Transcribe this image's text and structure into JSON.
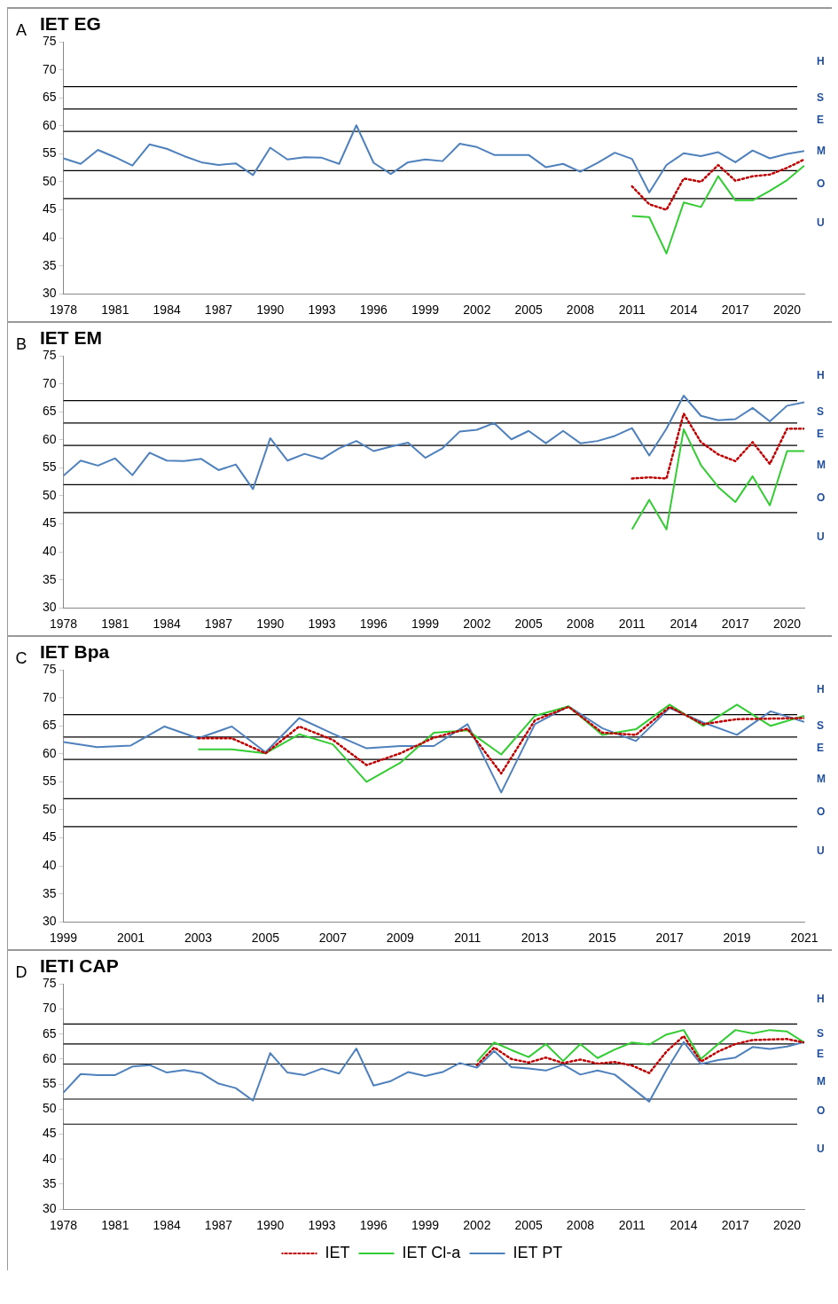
{
  "chart_data": [
    {
      "type": "line",
      "title": "IET EG",
      "annotations": [
        "A",
        "H",
        "S",
        "E",
        "M",
        "O",
        "U"
      ],
      "marker": "none",
      "grid": false,
      "legend": false,
      "xlim": [
        1978,
        2021
      ],
      "xticks": [
        1978,
        1981,
        1984,
        1987,
        1990,
        1993,
        1996,
        1999,
        2002,
        2005,
        2008,
        2011,
        2014,
        2017,
        2020
      ],
      "ylim": [
        30,
        75
      ],
      "yticks": [
        30,
        35,
        40,
        45,
        50,
        55,
        60,
        65,
        70,
        75
      ],
      "ref_lines": [
        {
          "axis": "y",
          "value": 47,
          "color": "#000000"
        },
        {
          "axis": "y",
          "value": 52,
          "color": "#000000"
        },
        {
          "axis": "y",
          "value": 59,
          "color": "#000000"
        },
        {
          "axis": "y",
          "value": 63,
          "color": "#000000"
        },
        {
          "axis": "y",
          "value": 67,
          "color": "#000000"
        }
      ],
      "series": [
        {
          "color": "#c00000",
          "line_style": "dotted",
          "x": [
            2011,
            2012,
            2013,
            2014,
            2015,
            2016,
            2017,
            2018,
            2019,
            2020,
            2021
          ],
          "values": [
            49.2,
            46.0,
            45.0,
            50.6,
            50.0,
            53.0,
            50.2,
            51.0,
            51.3,
            52.5,
            54.0
          ]
        },
        {
          "color": "#33cc33",
          "line_style": "solid",
          "x": [
            2011,
            2012,
            2013,
            2014,
            2015,
            2016,
            2017,
            2018,
            2019,
            2020,
            2021
          ],
          "values": [
            43.9,
            43.7,
            37.2,
            46.3,
            45.5,
            51.0,
            46.7,
            46.7,
            48.4,
            50.3,
            52.9
          ]
        },
        {
          "color": "#4f81bd",
          "line_style": "solid",
          "x": [
            1978,
            1979,
            1980,
            1981,
            1982,
            1983,
            1984,
            1985,
            1986,
            1987,
            1988,
            1989,
            1990,
            1991,
            1992,
            1993,
            1994,
            1995,
            1996,
            1997,
            1998,
            1999,
            2000,
            2001,
            2002,
            2003,
            2004,
            2005,
            2006,
            2007,
            2008,
            2009,
            2010,
            2011,
            2012,
            2013,
            2014,
            2015,
            2016,
            2017,
            2018,
            2019,
            2020,
            2021
          ],
          "values": [
            54.2,
            53.2,
            55.7,
            54.4,
            52.9,
            56.7,
            55.9,
            54.6,
            53.5,
            53.0,
            53.3,
            51.2,
            56.1,
            54.0,
            54.4,
            54.3,
            53.2,
            60.1,
            53.4,
            51.4,
            53.5,
            54.0,
            53.7,
            56.8,
            56.2,
            54.8,
            54.8,
            54.8,
            52.6,
            53.2,
            51.8,
            53.4,
            55.2,
            54.1,
            48.1,
            53.0,
            55.1,
            54.6,
            55.3,
            53.5,
            55.6,
            54.2,
            55.0,
            55.5
          ]
        }
      ]
    },
    {
      "type": "line",
      "title": "IET EM",
      "annotations": [
        "B",
        "H",
        "S",
        "E",
        "M",
        "O",
        "U"
      ],
      "marker": "none",
      "grid": false,
      "legend": false,
      "xlim": [
        1978,
        2021
      ],
      "xticks": [
        1978,
        1981,
        1984,
        1987,
        1990,
        1993,
        1996,
        1999,
        2002,
        2005,
        2008,
        2011,
        2014,
        2017,
        2020
      ],
      "ylim": [
        30,
        75
      ],
      "yticks": [
        30,
        35,
        40,
        45,
        50,
        55,
        60,
        65,
        70,
        75
      ],
      "ref_lines": [
        {
          "axis": "y",
          "value": 47,
          "color": "#000000"
        },
        {
          "axis": "y",
          "value": 52,
          "color": "#000000"
        },
        {
          "axis": "y",
          "value": 59,
          "color": "#000000"
        },
        {
          "axis": "y",
          "value": 63,
          "color": "#000000"
        },
        {
          "axis": "y",
          "value": 67,
          "color": "#000000"
        }
      ],
      "series": [
        {
          "color": "#c00000",
          "line_style": "dotted",
          "x": [
            2011,
            2012,
            2013,
            2014,
            2015,
            2016,
            2017,
            2018,
            2019,
            2020,
            2021
          ],
          "values": [
            53.1,
            53.3,
            53.1,
            64.7,
            59.6,
            57.4,
            56.2,
            59.6,
            55.7,
            62.0,
            62.0
          ]
        },
        {
          "color": "#33cc33",
          "line_style": "solid",
          "x": [
            2011,
            2012,
            2013,
            2014,
            2015,
            2016,
            2017,
            2018,
            2019,
            2020,
            2021
          ],
          "values": [
            44.0,
            49.3,
            44.0,
            61.9,
            55.5,
            51.6,
            48.9,
            53.5,
            48.3,
            58.0,
            58.0
          ]
        },
        {
          "color": "#4f81bd",
          "line_style": "solid",
          "x": [
            1978,
            1979,
            1980,
            1981,
            1982,
            1983,
            1984,
            1985,
            1986,
            1987,
            1988,
            1989,
            1990,
            1991,
            1992,
            1993,
            1994,
            1995,
            1996,
            1997,
            1998,
            1999,
            2000,
            2001,
            2002,
            2003,
            2004,
            2005,
            2006,
            2007,
            2008,
            2009,
            2010,
            2011,
            2012,
            2013,
            2014,
            2015,
            2016,
            2017,
            2018,
            2019,
            2020,
            2021
          ],
          "values": [
            53.6,
            56.3,
            55.4,
            56.7,
            53.7,
            57.7,
            56.3,
            56.2,
            56.6,
            54.6,
            55.6,
            51.2,
            60.3,
            56.3,
            57.5,
            56.6,
            58.5,
            59.8,
            58.0,
            58.8,
            59.5,
            56.8,
            58.5,
            61.5,
            61.8,
            63.0,
            60.1,
            61.6,
            59.4,
            61.6,
            59.4,
            59.8,
            60.7,
            62.1,
            57.2,
            62.0,
            67.9,
            64.3,
            63.5,
            63.7,
            65.7,
            63.3,
            66.1,
            66.7
          ]
        }
      ]
    },
    {
      "type": "line",
      "title": "IET Bpa",
      "annotations": [
        "C",
        "H",
        "S",
        "E",
        "M",
        "O",
        "U"
      ],
      "marker": "none",
      "grid": false,
      "legend": false,
      "xlim": [
        1999,
        2021
      ],
      "xticks": [
        1999,
        2001,
        2003,
        2005,
        2007,
        2009,
        2011,
        2013,
        2015,
        2017,
        2019,
        2021
      ],
      "ylim": [
        30,
        75
      ],
      "yticks": [
        30,
        35,
        40,
        45,
        50,
        55,
        60,
        65,
        70,
        75
      ],
      "ref_lines": [
        {
          "axis": "y",
          "value": 47,
          "color": "#000000"
        },
        {
          "axis": "y",
          "value": 52,
          "color": "#000000"
        },
        {
          "axis": "y",
          "value": 59,
          "color": "#000000"
        },
        {
          "axis": "y",
          "value": 63,
          "color": "#000000"
        },
        {
          "axis": "y",
          "value": 67,
          "color": "#000000"
        }
      ],
      "series": [
        {
          "color": "#c00000",
          "line_style": "dotted",
          "x": [
            2003,
            2004,
            2005,
            2006,
            2007,
            2008,
            2009,
            2010,
            2011,
            2012,
            2013,
            2014,
            2015,
            2016,
            2017,
            2018,
            2019,
            2020,
            2021
          ],
          "values": [
            62.8,
            62.8,
            60.1,
            64.9,
            62.5,
            58.0,
            60.1,
            62.9,
            64.5,
            56.5,
            66.0,
            68.4,
            63.8,
            63.4,
            68.4,
            65.3,
            66.2,
            66.3,
            66.4
          ]
        },
        {
          "color": "#33cc33",
          "line_style": "solid",
          "x": [
            2003,
            2004,
            2005,
            2006,
            2007,
            2008,
            2009,
            2010,
            2011,
            2012,
            2013,
            2014,
            2015,
            2016,
            2017,
            2018,
            2019,
            2020,
            2021
          ],
          "values": [
            60.8,
            60.8,
            60.1,
            63.5,
            61.7,
            55.0,
            58.4,
            63.8,
            64.2,
            59.9,
            66.8,
            68.5,
            63.4,
            64.4,
            68.8,
            65.0,
            68.8,
            65.0,
            66.8
          ]
        },
        {
          "color": "#4f81bd",
          "line_style": "solid",
          "x": [
            1999,
            2000,
            2001,
            2002,
            2003,
            2004,
            2005,
            2006,
            2007,
            2008,
            2009,
            2010,
            2011,
            2012,
            2013,
            2014,
            2015,
            2016,
            2017,
            2018,
            2019,
            2020,
            2021
          ],
          "values": [
            62.1,
            61.2,
            61.5,
            64.9,
            62.8,
            64.9,
            60.3,
            66.4,
            63.6,
            61.0,
            61.4,
            61.4,
            65.3,
            53.1,
            65.3,
            68.5,
            64.6,
            62.3,
            68.2,
            65.6,
            63.4,
            67.6,
            65.7
          ]
        }
      ]
    },
    {
      "type": "line",
      "title": "IETI CAP",
      "annotations": [
        "D",
        "H",
        "S",
        "E",
        "M",
        "O",
        "U"
      ],
      "marker": "none",
      "grid": false,
      "legend": "bottom",
      "xlim": [
        1978,
        2021
      ],
      "xticks": [
        1978,
        1981,
        1984,
        1987,
        1990,
        1993,
        1996,
        1999,
        2002,
        2005,
        2008,
        2011,
        2014,
        2017,
        2020
      ],
      "ylim": [
        30,
        75
      ],
      "yticks": [
        30,
        35,
        40,
        45,
        50,
        55,
        60,
        65,
        70,
        75
      ],
      "ref_lines": [
        {
          "axis": "y",
          "value": 47,
          "color": "#000000"
        },
        {
          "axis": "y",
          "value": 52,
          "color": "#000000"
        },
        {
          "axis": "y",
          "value": 59,
          "color": "#000000"
        },
        {
          "axis": "y",
          "value": 63,
          "color": "#000000"
        },
        {
          "axis": "y",
          "value": 67,
          "color": "#000000"
        }
      ],
      "series": [
        {
          "name": "IET",
          "color": "#c00000",
          "line_style": "dotted",
          "x": [
            2002,
            2003,
            2004,
            2005,
            2006,
            2007,
            2008,
            2009,
            2010,
            2011,
            2012,
            2013,
            2014,
            2015,
            2016,
            2017,
            2018,
            2019,
            2020,
            2021
          ],
          "values": [
            58.8,
            62.3,
            60.0,
            59.3,
            60.3,
            59.2,
            59.9,
            59.1,
            59.4,
            58.7,
            57.2,
            61.5,
            64.6,
            59.5,
            61.5,
            63.0,
            63.8,
            63.9,
            64.0,
            63.3
          ]
        },
        {
          "name": "IET Cl-a",
          "color": "#33cc33",
          "line_style": "solid",
          "x": [
            2002,
            2003,
            2004,
            2005,
            2006,
            2007,
            2008,
            2009,
            2010,
            2011,
            2012,
            2013,
            2014,
            2015,
            2016,
            2017,
            2018,
            2019,
            2020,
            2021
          ],
          "values": [
            59.5,
            63.3,
            61.8,
            60.4,
            63.0,
            59.6,
            63.0,
            60.2,
            61.9,
            63.3,
            62.9,
            64.9,
            65.8,
            60.0,
            63.0,
            65.8,
            65.1,
            65.8,
            65.5,
            63.3
          ]
        },
        {
          "name": "IET PT",
          "color": "#4f81bd",
          "line_style": "solid",
          "x": [
            1978,
            1979,
            1980,
            1981,
            1982,
            1983,
            1984,
            1985,
            1986,
            1987,
            1988,
            1989,
            1990,
            1991,
            1992,
            1993,
            1994,
            1995,
            1996,
            1997,
            1998,
            1999,
            2000,
            2001,
            2002,
            2003,
            2004,
            2005,
            2006,
            2007,
            2008,
            2009,
            2010,
            2011,
            2012,
            2013,
            2014,
            2015,
            2016,
            2017,
            2018,
            2019,
            2020,
            2021
          ],
          "values": [
            53.3,
            57.0,
            56.8,
            56.8,
            58.5,
            58.8,
            57.3,
            57.8,
            57.2,
            55.1,
            54.2,
            51.7,
            61.2,
            57.3,
            56.8,
            58.1,
            57.1,
            62.1,
            54.7,
            55.6,
            57.4,
            56.6,
            57.4,
            59.2,
            58.3,
            61.6,
            58.4,
            58.1,
            57.7,
            58.9,
            56.9,
            57.7,
            56.9,
            54.2,
            51.5,
            57.8,
            63.4,
            59.0,
            59.8,
            60.3,
            62.4,
            62.0,
            62.5,
            63.4
          ]
        }
      ]
    }
  ]
}
